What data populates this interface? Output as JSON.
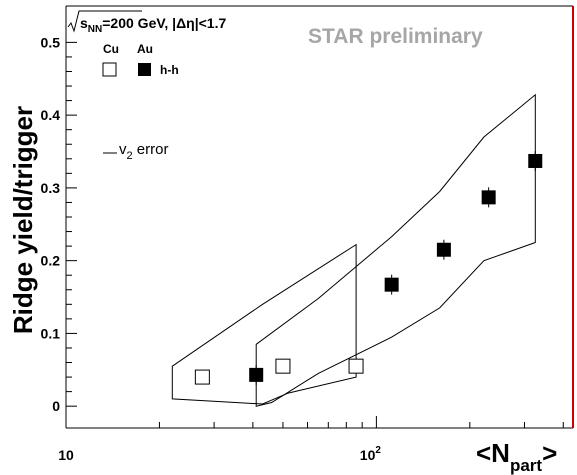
{
  "chart_data": {
    "type": "scatter",
    "title": "",
    "header": {
      "energy_label": "=200 GeV, |Δη|<1.7",
      "sqrt_s": "s",
      "sqrt_s_sub": "NN",
      "watermark": "STAR preliminary"
    },
    "legend": {
      "cu_label": "Cu",
      "au_label": "Au",
      "series_label": "h-h",
      "error_label": "v",
      "error_label_sub": "2",
      "error_label_tail": " error"
    },
    "xlabel": "<N",
    "xlabel_sub": "part",
    "xlabel_tail": ">",
    "ylabel": "Ridge yield/trigger",
    "x_scale": "log",
    "xlim": [
      10,
      430
    ],
    "ylim": [
      -0.03,
      0.55
    ],
    "x_ticks": [
      {
        "value": 10,
        "label": "10",
        "sup": ""
      },
      {
        "value": 100,
        "label": "10",
        "sup": "2"
      }
    ],
    "y_ticks": [
      {
        "value": 0,
        "label": "0"
      },
      {
        "value": 0.1,
        "label": "0.1"
      },
      {
        "value": 0.2,
        "label": "0.2"
      },
      {
        "value": 0.3,
        "label": "0.3"
      },
      {
        "value": 0.4,
        "label": "0.4"
      },
      {
        "value": 0.5,
        "label": "0.5"
      }
    ],
    "grid": false,
    "series": [
      {
        "name": "Cu",
        "marker": "open-square",
        "points": [
          [
            27.5,
            0.04
          ],
          [
            50,
            0.055
          ],
          [
            86,
            0.055
          ]
        ]
      },
      {
        "name": "Au",
        "marker": "filled-square",
        "points": [
          [
            41,
            0.043
          ],
          [
            112,
            0.167
          ],
          [
            165,
            0.215
          ],
          [
            230,
            0.287
          ],
          [
            325,
            0.337
          ]
        ]
      }
    ],
    "v2_error_bands": [
      {
        "series": "Cu",
        "outline": [
          [
            22,
            0.055
          ],
          [
            43,
            0.14
          ],
          [
            86,
            0.222
          ],
          [
            86,
            0.04
          ],
          [
            52,
            0.018
          ],
          [
            43,
            0.003
          ],
          [
            22,
            0.01
          ]
        ]
      },
      {
        "series": "Au",
        "outline": [
          [
            41,
            0.085
          ],
          [
            65,
            0.148
          ],
          [
            112,
            0.233
          ],
          [
            160,
            0.295
          ],
          [
            222,
            0.37
          ],
          [
            325,
            0.428
          ],
          [
            325,
            0.225
          ],
          [
            222,
            0.2
          ],
          [
            160,
            0.135
          ],
          [
            112,
            0.095
          ],
          [
            65,
            0.045
          ],
          [
            46,
            0.005
          ],
          [
            41,
            0.0
          ]
        ]
      }
    ],
    "colors": {
      "frame": "#000000",
      "right_edge": "#cc0000",
      "watermark": "#a6a6a6",
      "marker": "#000000"
    }
  }
}
